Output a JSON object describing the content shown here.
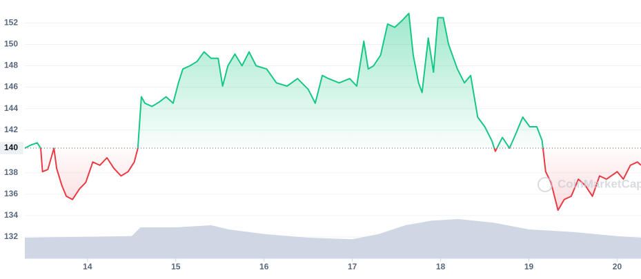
{
  "chart_data": {
    "type": "line",
    "x": [
      13.29,
      13.36,
      13.43,
      13.47,
      13.49,
      13.55,
      13.62,
      13.65,
      13.71,
      13.76,
      13.83,
      13.91,
      13.98,
      14.06,
      14.14,
      14.22,
      14.3,
      14.38,
      14.46,
      14.53,
      14.57,
      14.61,
      14.65,
      14.73,
      14.81,
      14.89,
      14.97,
      15.03,
      15.08,
      15.16,
      15.24,
      15.32,
      15.4,
      15.48,
      15.53,
      15.59,
      15.67,
      15.75,
      15.83,
      15.91,
      16.03,
      16.14,
      16.26,
      16.38,
      16.5,
      16.58,
      16.66,
      16.73,
      16.85,
      16.97,
      17.05,
      17.13,
      17.18,
      17.24,
      17.32,
      17.4,
      17.48,
      17.56,
      17.64,
      17.69,
      17.75,
      17.79,
      17.86,
      17.92,
      17.97,
      18.03,
      18.09,
      18.19,
      18.27,
      18.34,
      18.42,
      18.5,
      18.58,
      18.62,
      18.7,
      18.78,
      18.85,
      18.93,
      19.01,
      19.09,
      19.15,
      19.19,
      19.25,
      19.33,
      19.4,
      19.48,
      19.56,
      19.64,
      19.72,
      19.8,
      19.88,
      20.0,
      20.07,
      20.15,
      20.23,
      20.27
    ],
    "series": [
      {
        "values": [
          140.3,
          140.6,
          140.8,
          140.3,
          138.1,
          138.3,
          140.3,
          138.4,
          136.8,
          135.8,
          135.5,
          136.5,
          137.1,
          139.0,
          138.7,
          139.4,
          138.4,
          137.7,
          138.1,
          139.0,
          140.3,
          145.1,
          144.5,
          144.2,
          144.6,
          145.1,
          144.5,
          146.4,
          147.7,
          148.0,
          148.4,
          149.3,
          148.7,
          148.7,
          146.1,
          148.0,
          149.1,
          148.0,
          149.3,
          148.0,
          147.7,
          146.4,
          146.1,
          146.8,
          145.8,
          144.5,
          147.1,
          146.8,
          146.4,
          146.8,
          146.1,
          150.3,
          147.7,
          148.0,
          149.0,
          151.9,
          151.6,
          152.2,
          152.9,
          149.0,
          146.4,
          145.5,
          150.6,
          147.4,
          152.5,
          152.5,
          150.0,
          147.7,
          146.4,
          147.1,
          143.2,
          142.3,
          141.0,
          140.0,
          141.3,
          140.3,
          141.6,
          143.2,
          142.3,
          142.3,
          141.0,
          138.1,
          137.1,
          134.5,
          135.5,
          135.8,
          137.4,
          136.8,
          135.8,
          137.7,
          137.4,
          138.1,
          137.4,
          138.7,
          139.0,
          138.7
        ],
        "color_up": "#16c784",
        "color_down": "#ea3943"
      }
    ],
    "baseline": {
      "value": 140.3,
      "label": "140"
    },
    "volume": {
      "color": "#cfd6e4",
      "vlim": [
        0,
        100
      ],
      "x": [
        13.29,
        14.5,
        14.6,
        15.0,
        15.4,
        15.6,
        16.0,
        16.5,
        17.0,
        17.3,
        17.6,
        17.9,
        18.2,
        18.6,
        19.0,
        19.5,
        20.0,
        20.27
      ],
      "values": [
        40,
        43,
        60,
        60,
        64,
        56,
        47,
        40,
        37,
        47,
        64,
        73,
        76,
        69,
        56,
        51,
        43,
        40
      ]
    },
    "xlim": [
      13.29,
      20.27
    ],
    "xticks": [
      14,
      15,
      16,
      17,
      18,
      19,
      20
    ],
    "ylim": [
      130,
      154.15
    ],
    "yticks": [
      132,
      134,
      136,
      138,
      142,
      144,
      146,
      148,
      150,
      152
    ],
    "grid": true,
    "watermark": "CoinMarketCap"
  }
}
